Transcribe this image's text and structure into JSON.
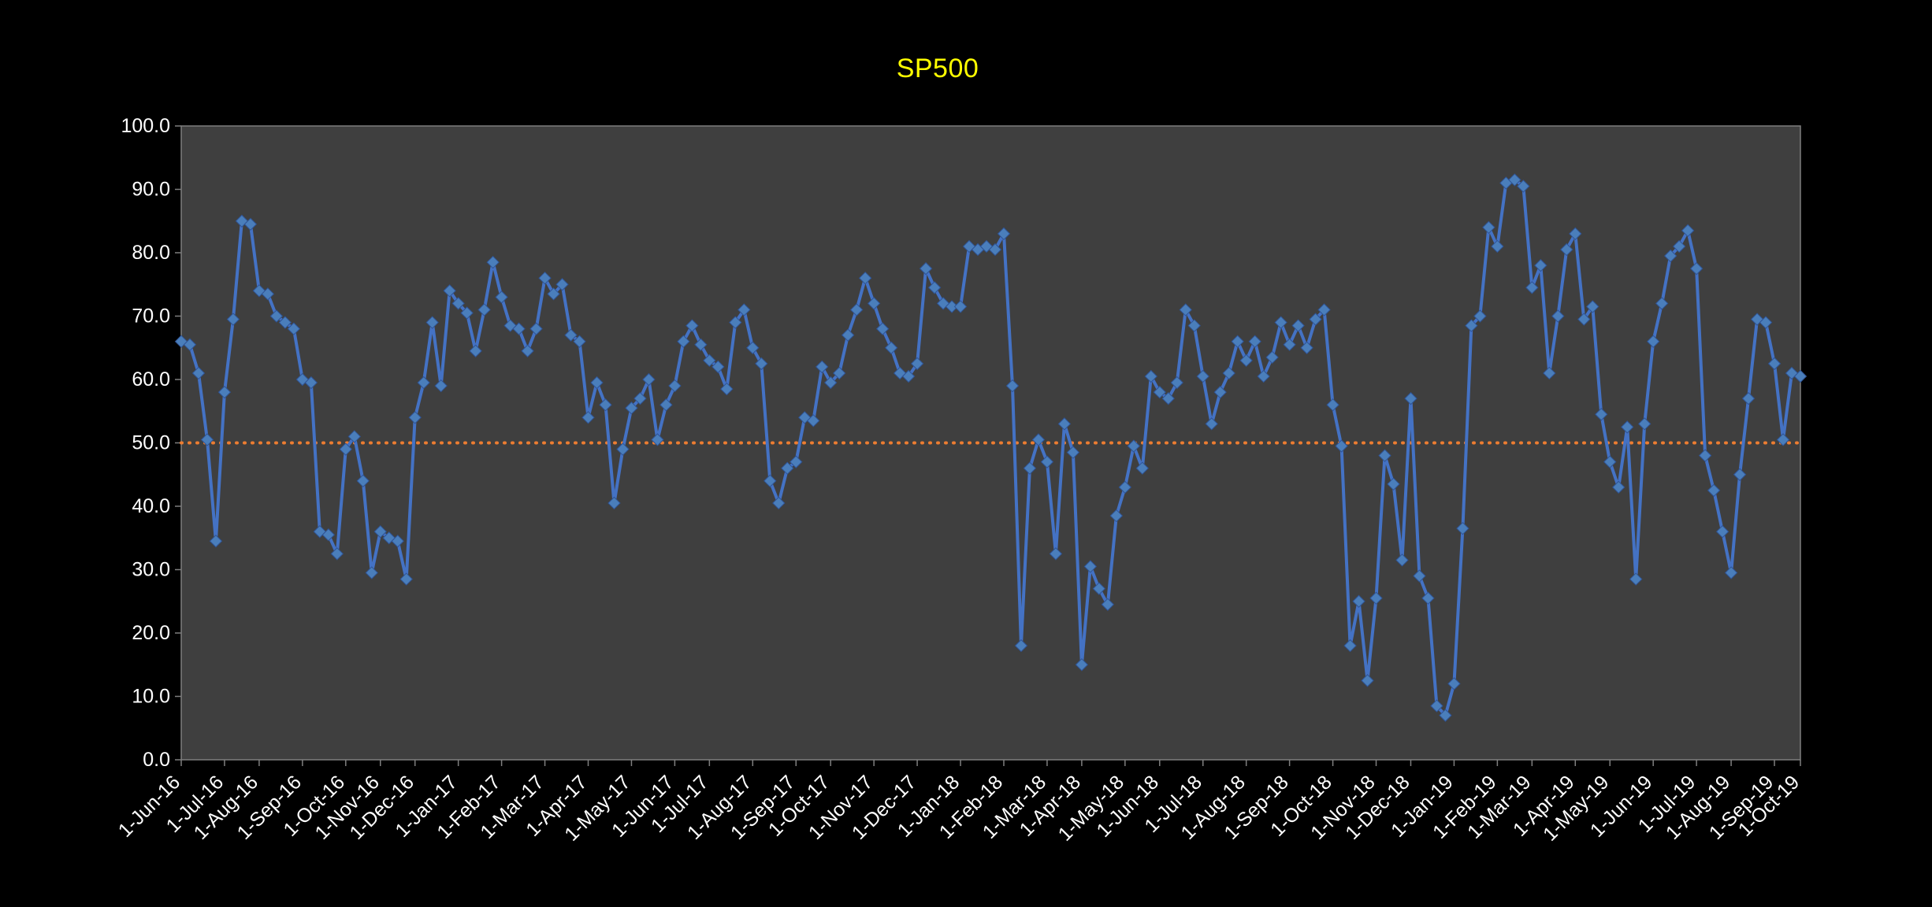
{
  "chart_data": {
    "type": "line",
    "title": "SP500",
    "xlabel": "",
    "ylabel": "",
    "ylim": [
      0,
      100
    ],
    "y_tick_step": 10,
    "y_tick_labels": [
      "0.0",
      "10.0",
      "20.0",
      "30.0",
      "40.0",
      "50.0",
      "60.0",
      "70.0",
      "80.0",
      "90.0",
      "100.0"
    ],
    "reference_line_value": 50,
    "legend": "none",
    "grid": "off",
    "colors": {
      "background": "#000000",
      "plot_background": "#3f3f3f",
      "plot_border": "#7f7f7f",
      "axis_text": "#FFFFFF",
      "series_line": "#4472C4",
      "marker_fill": "#4a7ebb",
      "reference_line": "#ED7D31",
      "title": "#FFFF00"
    },
    "months": [
      {
        "label": "1-Jun-16",
        "values": [
          66,
          65.5,
          61,
          50.5,
          34.5
        ]
      },
      {
        "label": "1-Jul-16",
        "values": [
          58,
          69.5,
          85,
          84.5
        ]
      },
      {
        "label": "1-Aug-16",
        "values": [
          74,
          73.5,
          70,
          69,
          68
        ]
      },
      {
        "label": "1-Sep-16",
        "values": [
          60,
          59.5,
          36,
          35.5,
          32.5
        ]
      },
      {
        "label": "1-Oct-16",
        "values": [
          49,
          51,
          44,
          29.5
        ]
      },
      {
        "label": "1-Nov-16",
        "values": [
          36,
          35,
          34.5,
          28.5
        ]
      },
      {
        "label": "1-Dec-16",
        "values": [
          54,
          59.5,
          69,
          59,
          74
        ]
      },
      {
        "label": "1-Jan-17",
        "values": [
          72,
          70.5,
          64.5,
          71,
          78.5
        ]
      },
      {
        "label": "1-Feb-17",
        "values": [
          73,
          68.5,
          68,
          64.5,
          68
        ]
      },
      {
        "label": "1-Mar-17",
        "values": [
          76,
          73.5,
          75,
          67,
          66
        ]
      },
      {
        "label": "1-Apr-17",
        "values": [
          54,
          59.5,
          56,
          40.5,
          49
        ]
      },
      {
        "label": "1-May-17",
        "values": [
          55.5,
          57,
          60,
          50.5,
          56
        ]
      },
      {
        "label": "1-Jun-17",
        "values": [
          59,
          66,
          68.5,
          65.5
        ]
      },
      {
        "label": "1-Jul-17",
        "values": [
          63,
          62,
          58.5,
          69,
          71
        ]
      },
      {
        "label": "1-Aug-17",
        "values": [
          65,
          62.5,
          44,
          40.5,
          46
        ]
      },
      {
        "label": "1-Sep-17",
        "values": [
          47,
          54,
          53.5,
          62
        ]
      },
      {
        "label": "1-Oct-17",
        "values": [
          59.5,
          61,
          67,
          71,
          76
        ]
      },
      {
        "label": "1-Nov-17",
        "values": [
          72,
          68,
          65,
          61,
          60.5
        ]
      },
      {
        "label": "1-Dec-17",
        "values": [
          62.5,
          77.5,
          74.5,
          72,
          71.5
        ]
      },
      {
        "label": "1-Jan-18",
        "values": [
          71.5,
          81,
          80.5,
          81,
          80.5
        ]
      },
      {
        "label": "1-Feb-18",
        "values": [
          83,
          59,
          18,
          46,
          50.5
        ]
      },
      {
        "label": "1-Mar-18",
        "values": [
          47,
          32.5,
          53,
          48.5
        ]
      },
      {
        "label": "1-Apr-18",
        "values": [
          15,
          30.5,
          27,
          24.5,
          38.5
        ]
      },
      {
        "label": "1-May-18",
        "values": [
          43,
          49.5,
          46,
          60.5
        ]
      },
      {
        "label": "1-Jun-18",
        "values": [
          58,
          57,
          59.5,
          71,
          68.5
        ]
      },
      {
        "label": "1-Jul-18",
        "values": [
          60.5,
          53,
          58,
          61,
          66
        ]
      },
      {
        "label": "1-Aug-18",
        "values": [
          63,
          66,
          60.5,
          63.5,
          69
        ]
      },
      {
        "label": "1-Sep-18",
        "values": [
          65.5,
          68.5,
          65,
          69.5,
          71
        ]
      },
      {
        "label": "1-Oct-18",
        "values": [
          56,
          49.5,
          18,
          25,
          12.5
        ]
      },
      {
        "label": "1-Nov-18",
        "values": [
          25.5,
          48,
          43.5,
          31.5
        ]
      },
      {
        "label": "1-Dec-18",
        "values": [
          57,
          29,
          25.5,
          8.5,
          7
        ]
      },
      {
        "label": "1-Jan-19",
        "values": [
          12,
          36.5,
          68.5,
          70,
          84
        ]
      },
      {
        "label": "1-Feb-19",
        "values": [
          81,
          91,
          91.5,
          90.5
        ]
      },
      {
        "label": "1-Mar-19",
        "values": [
          74.5,
          78,
          61,
          70,
          80.5
        ]
      },
      {
        "label": "1-Apr-19",
        "values": [
          83,
          69.5,
          71.5,
          54.5
        ]
      },
      {
        "label": "1-May-19",
        "values": [
          47,
          43,
          52.5,
          28.5,
          53
        ]
      },
      {
        "label": "1-Jun-19",
        "values": [
          66,
          72,
          79.5,
          81,
          83.5
        ]
      },
      {
        "label": "1-Jul-19",
        "values": [
          77.5,
          48,
          42.5,
          36
        ]
      },
      {
        "label": "1-Aug-19",
        "values": [
          29.5,
          45,
          57,
          69.5,
          69
        ]
      },
      {
        "label": "1-Sep-19",
        "values": [
          62.5,
          50.5,
          61
        ]
      },
      {
        "label": "1-Oct-19",
        "values": [
          60.5
        ]
      }
    ]
  }
}
